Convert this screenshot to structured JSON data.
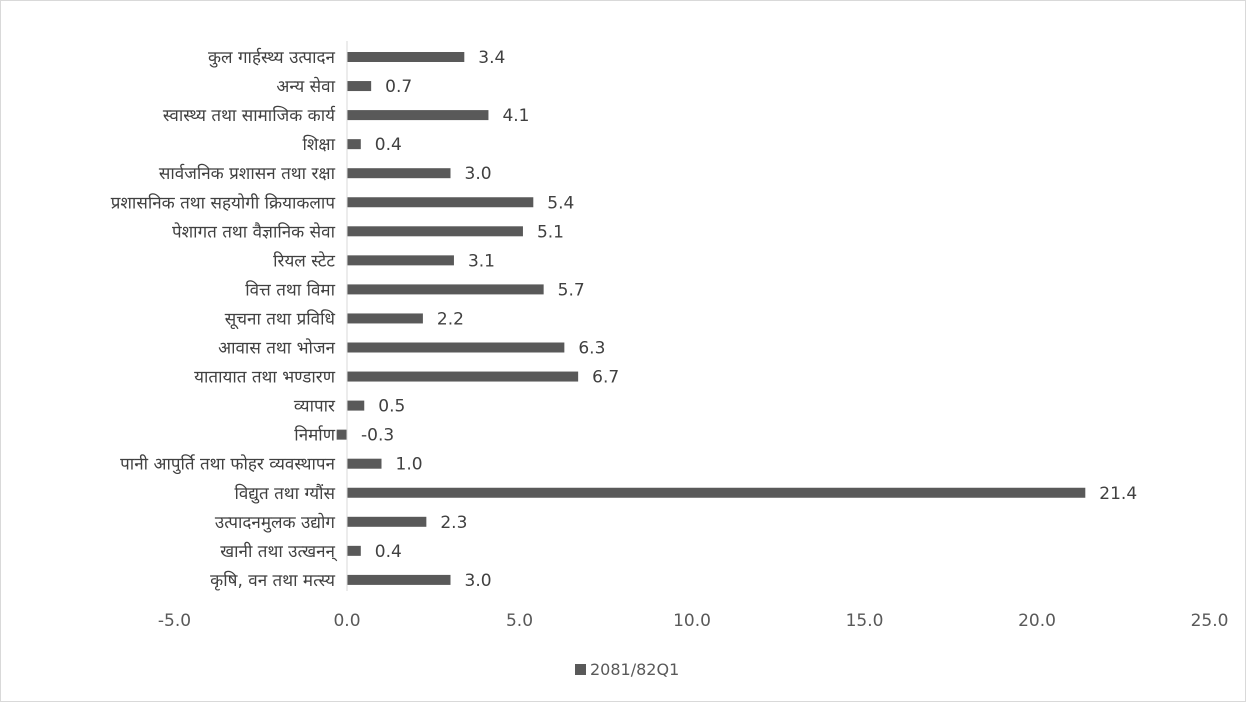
{
  "chart_data": {
    "type": "bar",
    "orientation": "horizontal",
    "title": "",
    "xlabel": "",
    "ylabel": "",
    "categories": [
      "कुल गार्हस्थ्य उत्पादन",
      "अन्य सेवा",
      "स्वास्थ्य तथा सामाजिक कार्य",
      "शिक्षा",
      "सार्वजनिक प्रशासन तथा रक्षा",
      "प्रशासनिक तथा सहयोगी क्रियाकलाप",
      "पेशागत तथा वैज्ञानिक सेवा",
      "रियल स्टेट",
      "वित्त तथा विमा",
      "सूचना तथा प्रविधि",
      "आवास तथा भोजन",
      "यातायात तथा भण्डारण",
      "व्यापार",
      "निर्माण",
      "पानी आपुर्ति तथा फोहर व्यवस्थापन",
      "विद्युत तथा ग्यौंस",
      "उत्पादनमुलक उद्योग",
      "खानी तथा उत्खनन्",
      "कृषि, वन तथा मत्स्य"
    ],
    "series": [
      {
        "name": "2081/82Q1",
        "color": "#595959",
        "values": [
          3.4,
          0.7,
          4.1,
          0.4,
          3.0,
          5.4,
          5.1,
          3.1,
          5.7,
          2.2,
          6.3,
          6.7,
          0.5,
          -0.3,
          1.0,
          21.4,
          2.3,
          0.4,
          3.0
        ],
        "data_labels": [
          "3.4",
          "0.7",
          "4.1",
          "0.4",
          "3.0",
          "5.4",
          "5.1",
          "3.1",
          "5.7",
          "2.2",
          "6.3",
          "6.7",
          "0.5",
          "-0.3",
          "1.0",
          "21.4",
          "2.3",
          "0.4",
          "3.0"
        ]
      }
    ],
    "xlim": [
      -5,
      25
    ],
    "xticks": [
      -5,
      0,
      5,
      10,
      15,
      20,
      25
    ],
    "xtick_labels": [
      "-5.0",
      "0.0",
      "5.0",
      "10.0",
      "15.0",
      "20.0",
      "25.0"
    ],
    "grid": false,
    "legend": {
      "position": "bottom",
      "entries": [
        "2081/82Q1"
      ]
    }
  }
}
